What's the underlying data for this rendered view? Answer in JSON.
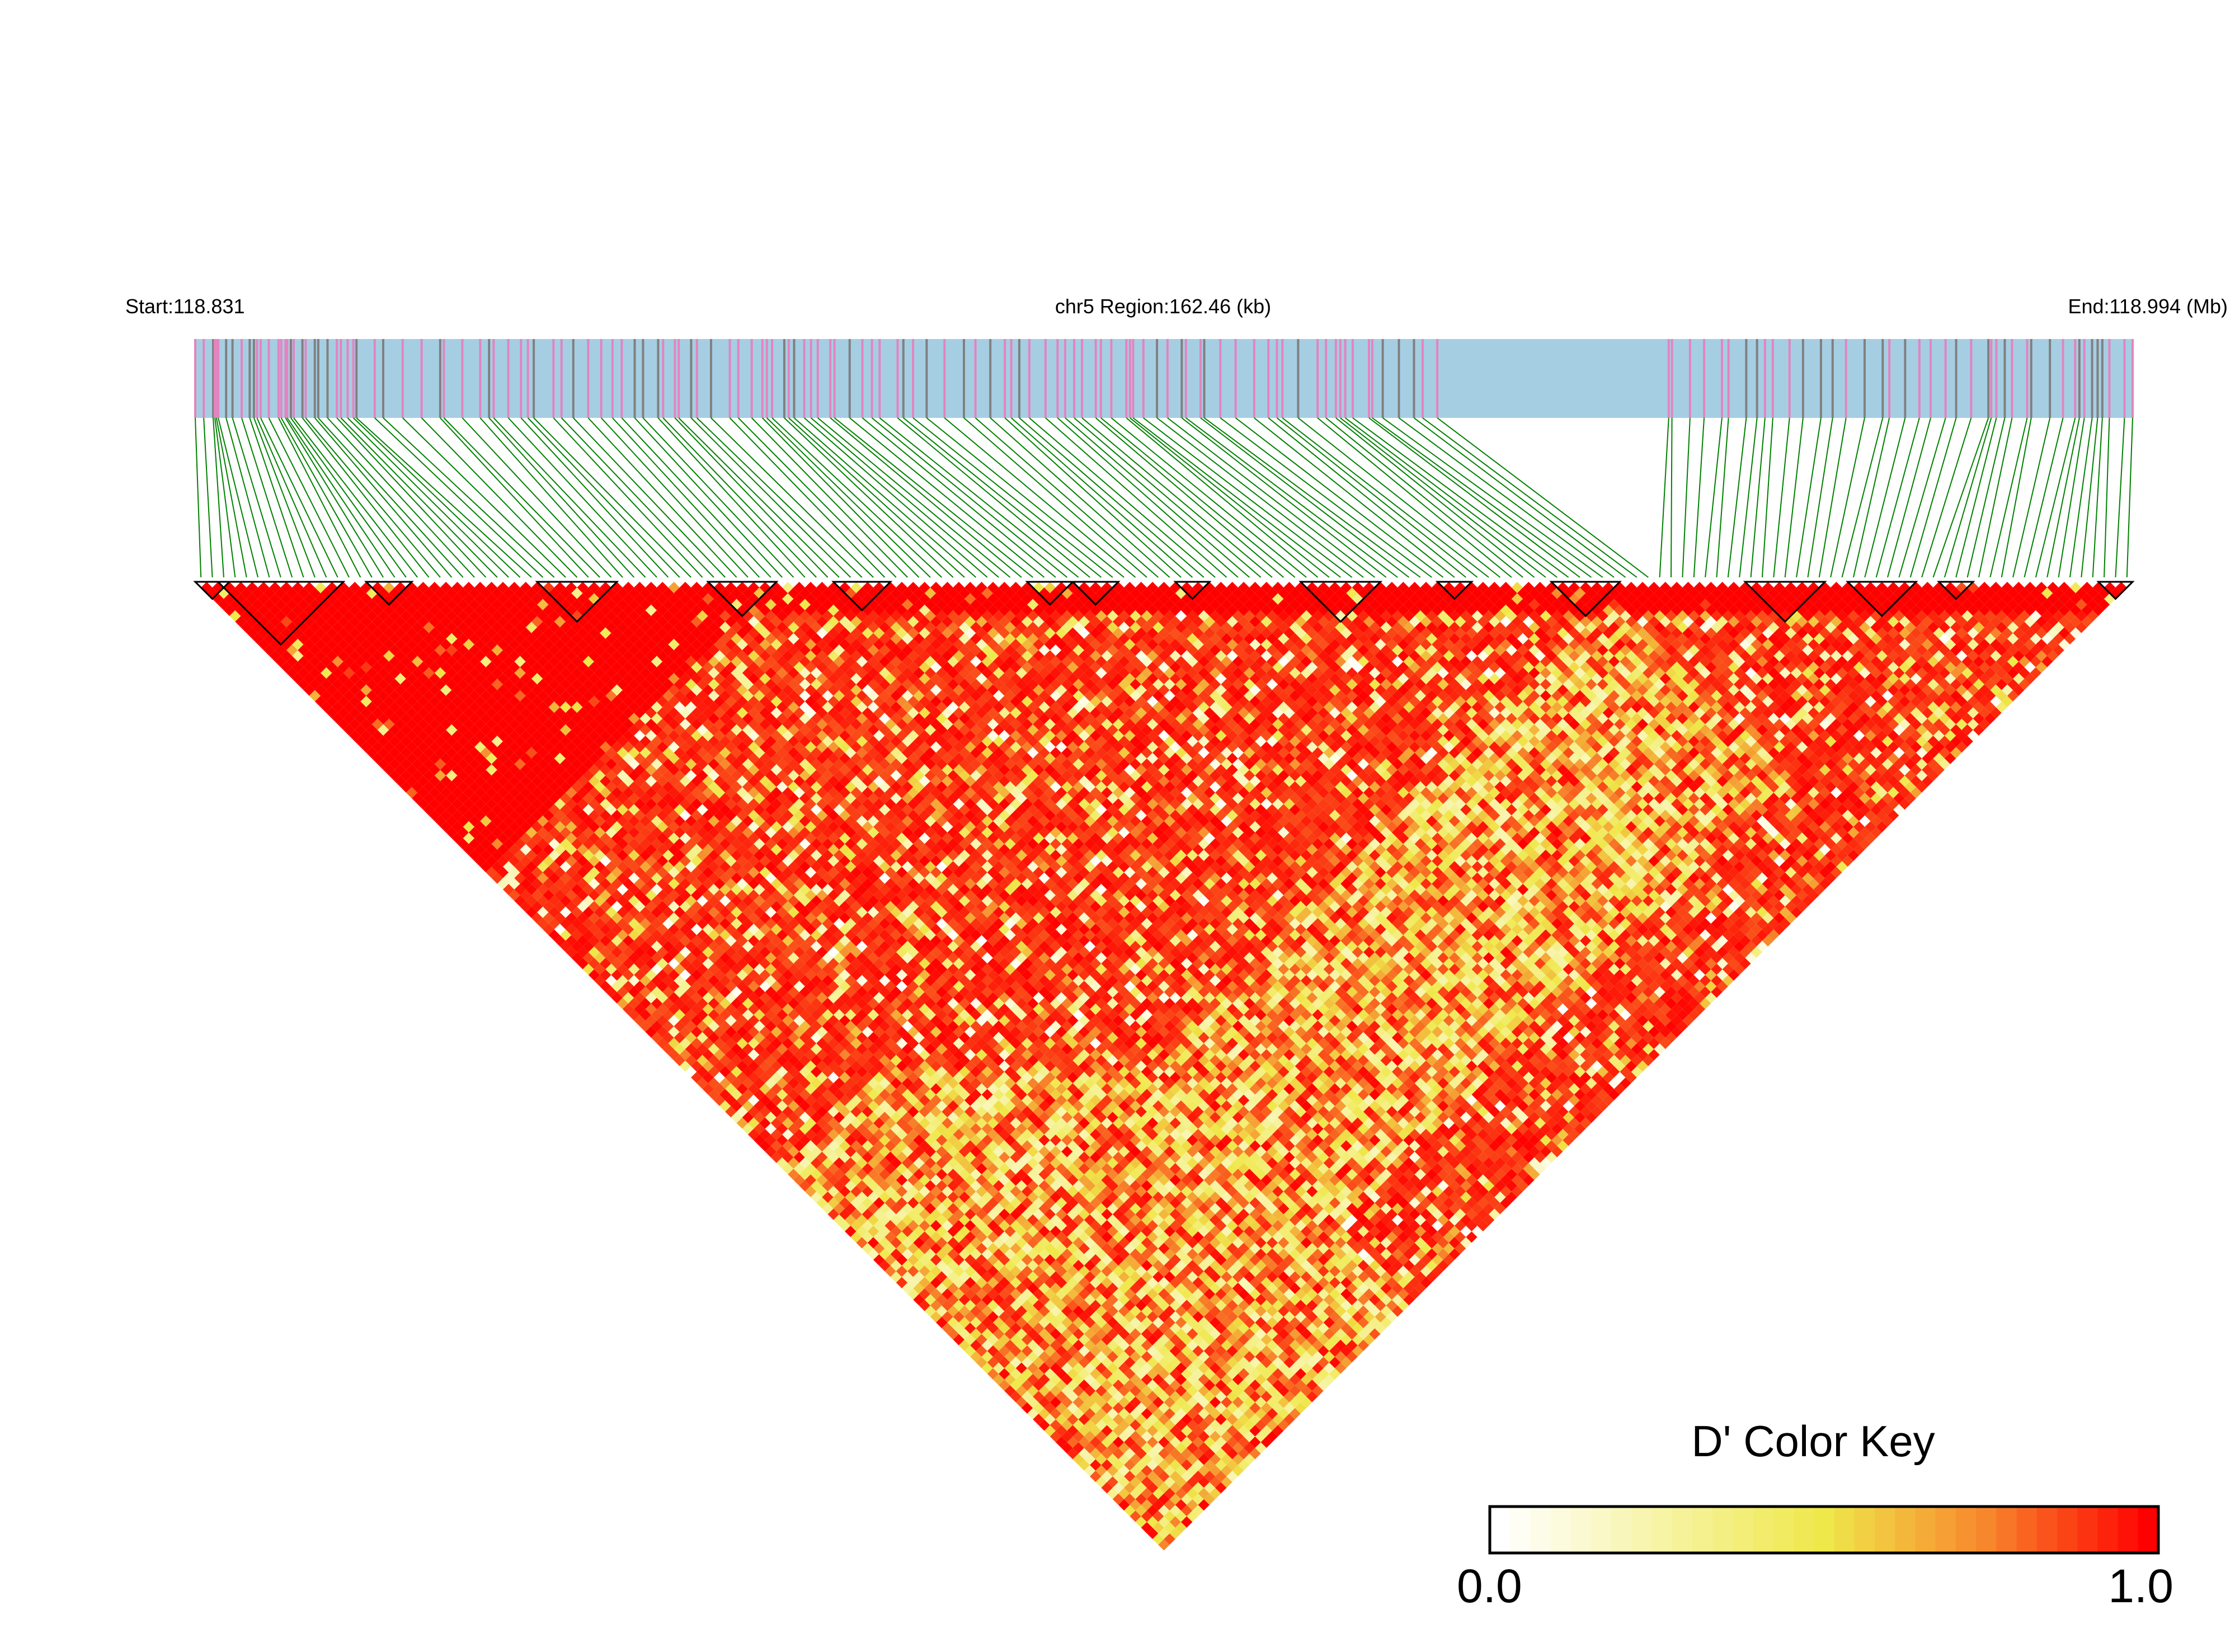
{
  "chart_data": {
    "type": "heatmap",
    "subtype": "LD triangle (D')",
    "header": {
      "start_label": "Start:118.831",
      "region_label": "chr5 Region:162.46 (kb)",
      "end_label": "End:118.994 (Mb)"
    },
    "chromosome": "chr5",
    "start_mb": 118.831,
    "end_mb": 118.994,
    "region_kb": 162.46,
    "colors": {
      "track_background": "#A6CEE3",
      "snp_marker_primary": "#E384C0",
      "snp_marker_secondary": "#808080",
      "connector": "#008000",
      "block_outline": "#000000",
      "scale": [
        "#FFFFFF",
        "#EFE84A",
        "#F7872C",
        "#FF0000"
      ]
    },
    "color_key": {
      "title": "D' Color Key",
      "min_label": "0.0",
      "max_label": "1.0",
      "range": [
        0,
        1
      ]
    }
  }
}
